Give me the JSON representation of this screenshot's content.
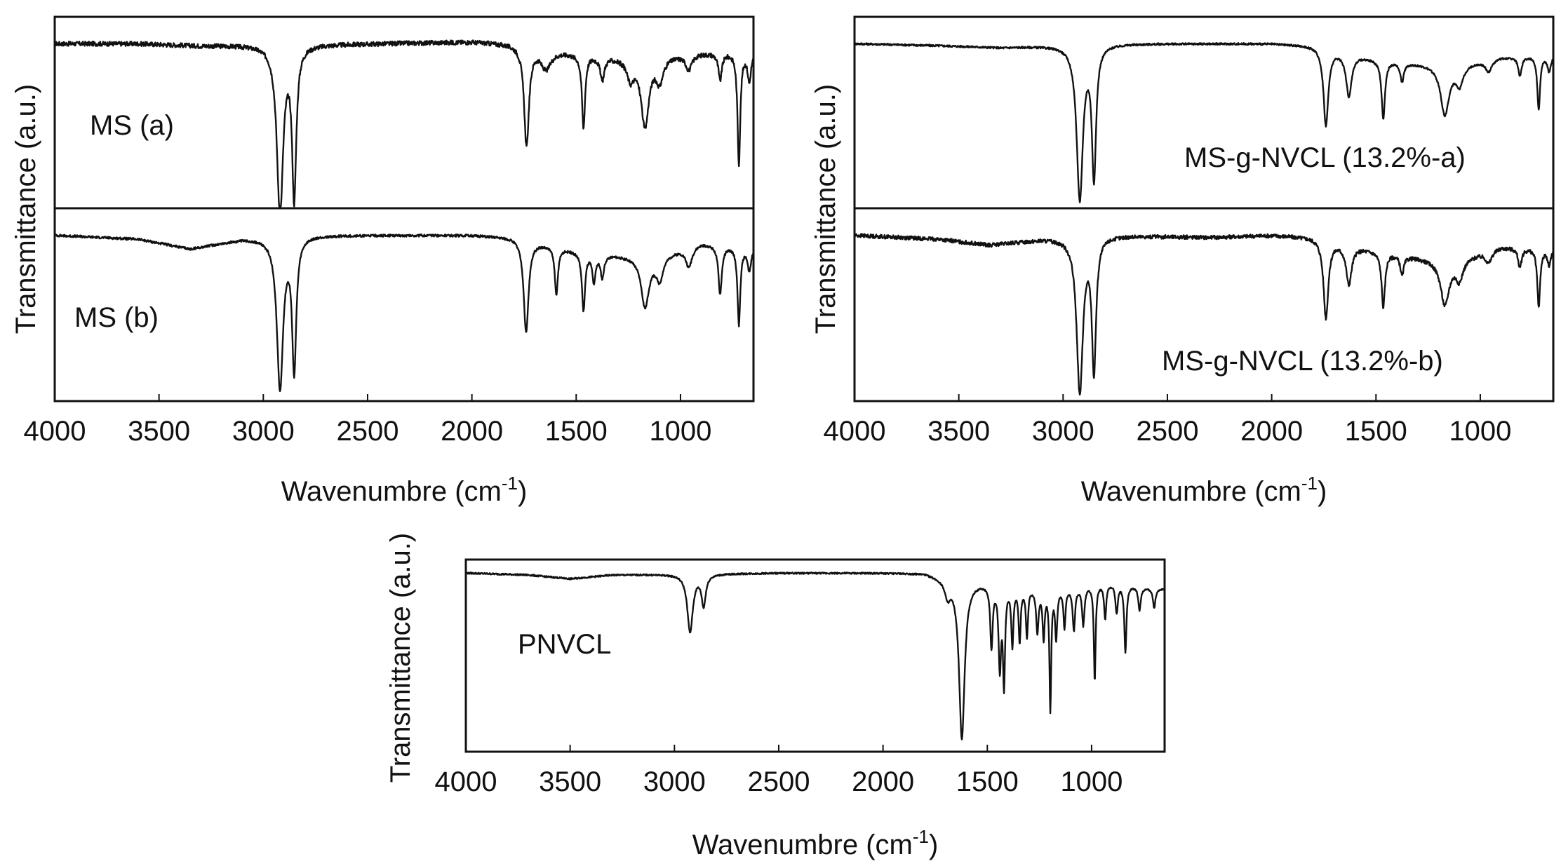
{
  "chart_data": [
    {
      "type": "line",
      "figure": "top-left",
      "xlabel": "Wavenumbre (cm",
      "xlabel_sup": "-1",
      "xlabel_end": ")",
      "ylabel": "Transmittance (a.u.)",
      "xlim": [
        4000,
        650
      ],
      "xticks": [
        4000,
        3500,
        3000,
        2500,
        2000,
        1500,
        1000
      ],
      "x_tick_labels": [
        "4000",
        "3500",
        "3000",
        "2500",
        "2000",
        "1500",
        "1000"
      ],
      "y_units": "relative transmittance 0-1 per stacked spectrum",
      "series": [
        {
          "name": "MS (a)",
          "label_position": "upper-left",
          "baseline": 0.86,
          "noise": 0.012,
          "slope": [
            [
              4000,
              0.0
            ],
            [
              3600,
              0.0
            ],
            [
              3300,
              -0.01
            ],
            [
              2500,
              0.0
            ],
            [
              2000,
              0.01
            ],
            [
              1800,
              0.0
            ],
            [
              1500,
              -0.05
            ],
            [
              1200,
              -0.08
            ],
            [
              950,
              -0.05
            ],
            [
              700,
              -0.04
            ]
          ],
          "peaks": [
            {
              "x": 2920,
              "depth": 0.88,
              "width": 18
            },
            {
              "x": 2852,
              "depth": 0.78,
              "width": 12
            },
            {
              "x": 1738,
              "depth": 0.52,
              "width": 14
            },
            {
              "x": 1645,
              "depth": 0.1,
              "width": 30
            },
            {
              "x": 1465,
              "depth": 0.38,
              "width": 9
            },
            {
              "x": 1375,
              "depth": 0.12,
              "width": 12
            },
            {
              "x": 1240,
              "depth": 0.1,
              "width": 20
            },
            {
              "x": 1170,
              "depth": 0.35,
              "width": 22
            },
            {
              "x": 1100,
              "depth": 0.12,
              "width": 20
            },
            {
              "x": 960,
              "depth": 0.08,
              "width": 18
            },
            {
              "x": 810,
              "depth": 0.14,
              "width": 10
            },
            {
              "x": 720,
              "depth": 0.58,
              "width": 8
            },
            {
              "x": 670,
              "depth": 0.15,
              "width": 10
            }
          ]
        },
        {
          "name": "MS (b)",
          "label_position": "lower-left",
          "baseline": 0.86,
          "noise": 0.006,
          "slope": [
            [
              4000,
              0.0
            ],
            [
              3600,
              -0.02
            ],
            [
              3350,
              -0.07
            ],
            [
              3100,
              -0.02
            ],
            [
              2800,
              0.0
            ],
            [
              2000,
              0.0
            ],
            [
              1800,
              -0.01
            ],
            [
              1500,
              -0.08
            ],
            [
              1150,
              -0.12
            ],
            [
              900,
              -0.04
            ],
            [
              700,
              -0.06
            ]
          ],
          "peaks": [
            {
              "x": 2920,
              "depth": 0.78,
              "width": 18
            },
            {
              "x": 2852,
              "depth": 0.68,
              "width": 12
            },
            {
              "x": 1740,
              "depth": 0.48,
              "width": 14
            },
            {
              "x": 1595,
              "depth": 0.25,
              "width": 9
            },
            {
              "x": 1465,
              "depth": 0.3,
              "width": 9
            },
            {
              "x": 1415,
              "depth": 0.15,
              "width": 9
            },
            {
              "x": 1375,
              "depth": 0.12,
              "width": 10
            },
            {
              "x": 1170,
              "depth": 0.25,
              "width": 22
            },
            {
              "x": 1100,
              "depth": 0.12,
              "width": 20
            },
            {
              "x": 960,
              "depth": 0.1,
              "width": 18
            },
            {
              "x": 810,
              "depth": 0.25,
              "width": 10
            },
            {
              "x": 720,
              "depth": 0.4,
              "width": 8
            },
            {
              "x": 670,
              "depth": 0.12,
              "width": 10
            }
          ]
        }
      ]
    },
    {
      "type": "line",
      "figure": "top-right",
      "xlabel": "Wavenumbre (cm",
      "xlabel_sup": "-1",
      "xlabel_end": ")",
      "ylabel": "Transmittance (a.u.)",
      "xlim": [
        4000,
        650
      ],
      "xticks": [
        4000,
        3500,
        3000,
        2500,
        2000,
        1500,
        1000
      ],
      "x_tick_labels": [
        "4000",
        "3500",
        "3000",
        "2500",
        "2000",
        "1500",
        "1000"
      ],
      "y_units": "relative transmittance 0-1 per stacked spectrum",
      "series": [
        {
          "name": "MS-g-NVCL (13.2%-a)",
          "label_position": "lower-right",
          "baseline": 0.86,
          "noise": 0.005,
          "slope": [
            [
              4000,
              0.0
            ],
            [
              3600,
              -0.01
            ],
            [
              3300,
              -0.02
            ],
            [
              2800,
              0.0
            ],
            [
              2000,
              0.0
            ],
            [
              1800,
              -0.01
            ],
            [
              1500,
              -0.08
            ],
            [
              1150,
              -0.12
            ],
            [
              900,
              -0.07
            ],
            [
              700,
              -0.06
            ]
          ],
          "peaks": [
            {
              "x": 2920,
              "depth": 0.8,
              "width": 18
            },
            {
              "x": 2852,
              "depth": 0.68,
              "width": 12
            },
            {
              "x": 1740,
              "depth": 0.4,
              "width": 14
            },
            {
              "x": 1630,
              "depth": 0.22,
              "width": 16
            },
            {
              "x": 1465,
              "depth": 0.3,
              "width": 10
            },
            {
              "x": 1375,
              "depth": 0.1,
              "width": 10
            },
            {
              "x": 1170,
              "depth": 0.25,
              "width": 24
            },
            {
              "x": 1100,
              "depth": 0.1,
              "width": 20
            },
            {
              "x": 960,
              "depth": 0.06,
              "width": 18
            },
            {
              "x": 810,
              "depth": 0.1,
              "width": 10
            },
            {
              "x": 720,
              "depth": 0.28,
              "width": 8
            },
            {
              "x": 670,
              "depth": 0.08,
              "width": 10
            }
          ]
        },
        {
          "name": "MS-g-NVCL (13.2%-b)",
          "label_position": "lower-right",
          "baseline": 0.86,
          "noise": 0.01,
          "slope": [
            [
              4000,
              0.0
            ],
            [
              3600,
              -0.02
            ],
            [
              3350,
              -0.05
            ],
            [
              3100,
              -0.02
            ],
            [
              2800,
              0.0
            ],
            [
              2300,
              -0.01
            ],
            [
              2000,
              0.0
            ],
            [
              1800,
              -0.01
            ],
            [
              1500,
              -0.08
            ],
            [
              1150,
              -0.14
            ],
            [
              900,
              -0.06
            ],
            [
              700,
              -0.07
            ]
          ],
          "peaks": [
            {
              "x": 2920,
              "depth": 0.8,
              "width": 18
            },
            {
              "x": 2852,
              "depth": 0.68,
              "width": 12
            },
            {
              "x": 1740,
              "depth": 0.4,
              "width": 14
            },
            {
              "x": 1630,
              "depth": 0.2,
              "width": 16
            },
            {
              "x": 1465,
              "depth": 0.28,
              "width": 10
            },
            {
              "x": 1375,
              "depth": 0.1,
              "width": 10
            },
            {
              "x": 1170,
              "depth": 0.22,
              "width": 24
            },
            {
              "x": 1100,
              "depth": 0.1,
              "width": 20
            },
            {
              "x": 960,
              "depth": 0.06,
              "width": 18
            },
            {
              "x": 810,
              "depth": 0.1,
              "width": 10
            },
            {
              "x": 720,
              "depth": 0.3,
              "width": 8
            },
            {
              "x": 670,
              "depth": 0.08,
              "width": 10
            }
          ]
        }
      ]
    },
    {
      "type": "line",
      "figure": "bottom-center",
      "xlabel": "Wavenumbre (cm",
      "xlabel_sup": "-1",
      "xlabel_end": ")",
      "ylabel": "Transmittance (a.u.)",
      "xlim": [
        4000,
        650
      ],
      "xticks": [
        4000,
        3500,
        3000,
        2500,
        2000,
        1500,
        1000
      ],
      "x_tick_labels": [
        "4000",
        "3500",
        "3000",
        "2500",
        "2000",
        "1500",
        "1000"
      ],
      "y_units": "relative transmittance 0-1",
      "series": [
        {
          "name": "PNVCL",
          "label_position": "left",
          "baseline": 0.93,
          "noise": 0.004,
          "slope": [
            [
              4000,
              0.0
            ],
            [
              3700,
              -0.01
            ],
            [
              3500,
              -0.03
            ],
            [
              3300,
              -0.01
            ],
            [
              2500,
              0.0
            ],
            [
              2000,
              0.0
            ],
            [
              1800,
              0.0
            ],
            [
              1700,
              -0.03
            ],
            [
              1500,
              -0.05
            ],
            [
              1200,
              -0.08
            ],
            [
              900,
              -0.05
            ],
            [
              700,
              -0.08
            ]
          ],
          "peaks": [
            {
              "x": 2925,
              "depth": 0.3,
              "width": 16
            },
            {
              "x": 2860,
              "depth": 0.16,
              "width": 12
            },
            {
              "x": 1690,
              "depth": 0.08,
              "width": 14
            },
            {
              "x": 1622,
              "depth": 0.82,
              "width": 16
            },
            {
              "x": 1480,
              "depth": 0.32,
              "width": 7
            },
            {
              "x": 1440,
              "depth": 0.42,
              "width": 7
            },
            {
              "x": 1420,
              "depth": 0.5,
              "width": 6
            },
            {
              "x": 1380,
              "depth": 0.3,
              "width": 6
            },
            {
              "x": 1345,
              "depth": 0.28,
              "width": 6
            },
            {
              "x": 1310,
              "depth": 0.25,
              "width": 6
            },
            {
              "x": 1260,
              "depth": 0.22,
              "width": 7
            },
            {
              "x": 1230,
              "depth": 0.25,
              "width": 6
            },
            {
              "x": 1198,
              "depth": 0.62,
              "width": 5
            },
            {
              "x": 1170,
              "depth": 0.25,
              "width": 6
            },
            {
              "x": 1130,
              "depth": 0.2,
              "width": 6
            },
            {
              "x": 1085,
              "depth": 0.22,
              "width": 7
            },
            {
              "x": 1040,
              "depth": 0.2,
              "width": 7
            },
            {
              "x": 985,
              "depth": 0.5,
              "width": 5
            },
            {
              "x": 935,
              "depth": 0.18,
              "width": 6
            },
            {
              "x": 880,
              "depth": 0.15,
              "width": 7
            },
            {
              "x": 838,
              "depth": 0.35,
              "width": 6
            },
            {
              "x": 770,
              "depth": 0.12,
              "width": 7
            },
            {
              "x": 700,
              "depth": 0.1,
              "width": 7
            }
          ]
        }
      ]
    }
  ]
}
